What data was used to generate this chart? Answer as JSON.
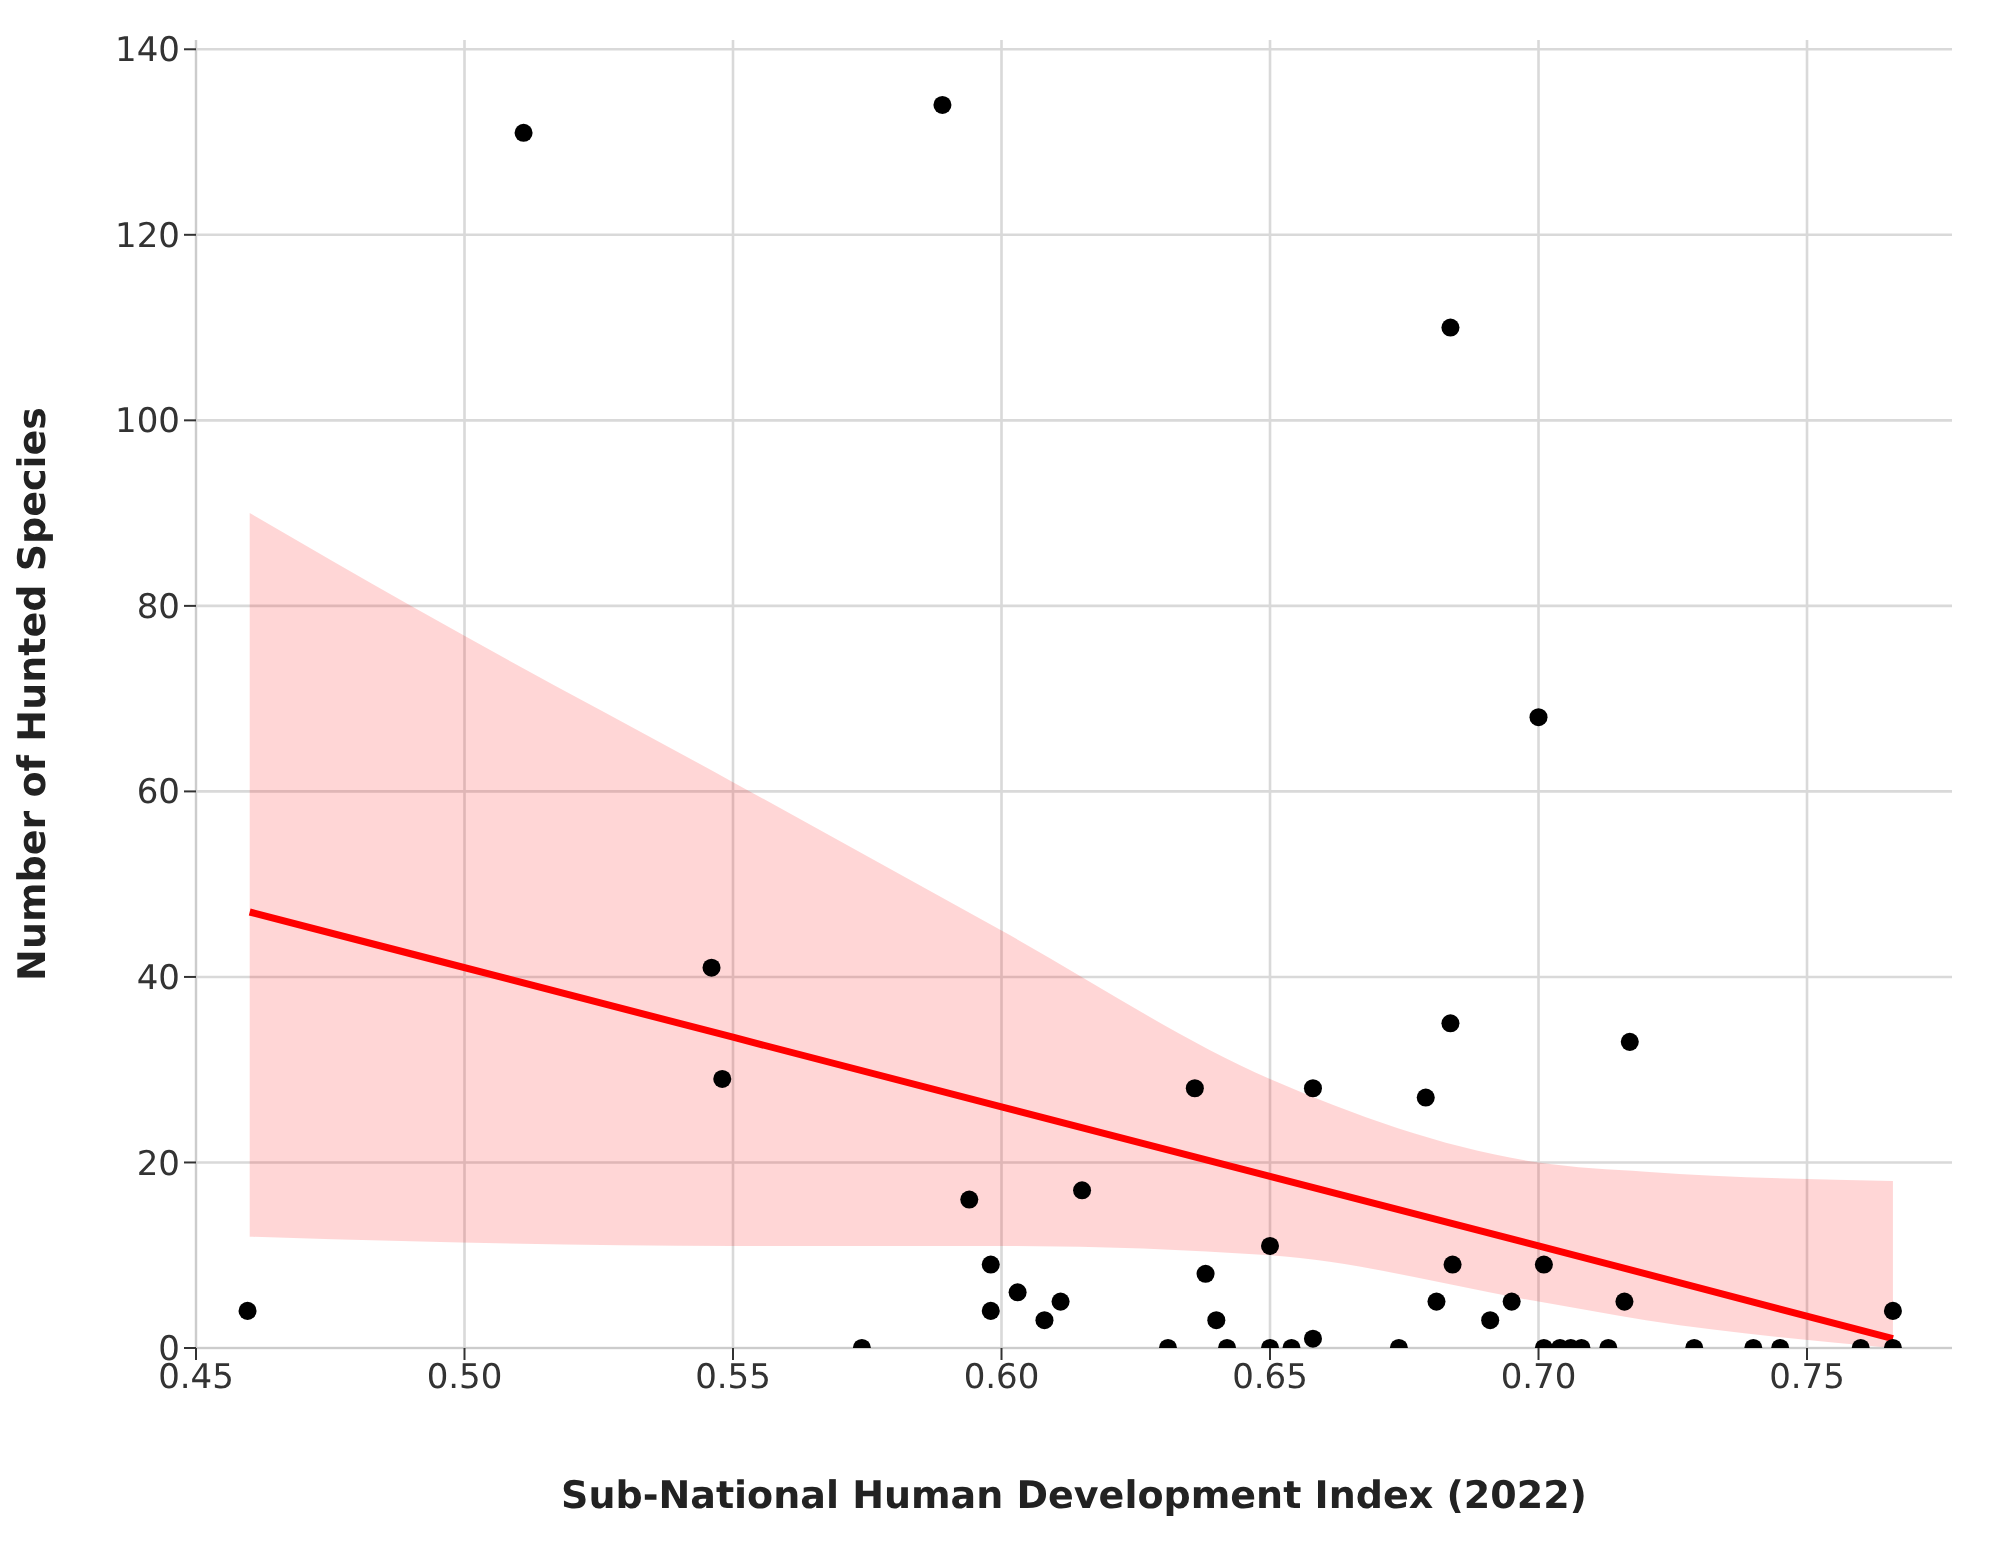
{
  "chart_data": {
    "type": "scatter",
    "xlabel": "Sub-National Human Development Index (2022)",
    "ylabel": "Number of Hunted Species",
    "xlim": [
      0.45,
      0.777
    ],
    "xticks": [
      {
        "value": 0.45,
        "label": "0.45"
      },
      {
        "value": 0.5,
        "label": "0.50"
      },
      {
        "value": 0.55,
        "label": "0.55"
      },
      {
        "value": 0.6,
        "label": "0.60"
      },
      {
        "value": 0.65,
        "label": "0.65"
      },
      {
        "value": 0.7,
        "label": "0.70"
      },
      {
        "value": 0.75,
        "label": "0.75"
      }
    ],
    "ylim": [
      0,
      141
    ],
    "yticks": [
      0,
      20,
      40,
      60,
      80,
      100,
      120,
      140
    ],
    "grid": true,
    "legend": false,
    "series": [
      {
        "type": "scatter",
        "color": "#000000",
        "marker": "circle",
        "x": [
          0.4596,
          0.511,
          0.589,
          0.6836,
          0.7,
          0.546,
          0.548,
          0.594,
          0.598,
          0.598,
          0.603,
          0.608,
          0.611,
          0.615,
          0.574,
          0.631,
          0.636,
          0.638,
          0.64,
          0.642,
          0.65,
          0.65,
          0.654,
          0.658,
          0.658,
          0.674,
          0.679,
          0.6836,
          0.681,
          0.684,
          0.691,
          0.695,
          0.701,
          0.701,
          0.704,
          0.706,
          0.708,
          0.713,
          0.716,
          0.717,
          0.729,
          0.74,
          0.745,
          0.76,
          0.766,
          0.766
        ],
        "values": [
          4,
          131,
          134,
          110,
          68,
          41,
          29,
          16,
          9,
          4,
          6,
          3,
          5,
          17,
          0,
          0,
          28,
          8,
          3,
          0,
          11,
          0,
          0,
          28,
          1,
          0,
          27,
          35,
          5,
          9,
          3,
          5,
          9,
          0,
          0,
          0,
          0,
          0,
          5,
          33,
          0,
          0,
          0,
          0,
          0,
          4
        ]
      },
      {
        "type": "line",
        "color": "#ff0000",
        "line_style": "solid",
        "marker": "none",
        "x": [
          0.46,
          0.49,
          0.55,
          0.6,
          0.65,
          0.7,
          0.72,
          0.766
        ],
        "values": [
          47,
          42.5,
          33.5,
          26,
          18.5,
          11,
          8,
          1
        ],
        "lower": [
          12,
          11.5,
          11,
          11,
          10,
          5,
          3,
          0
        ],
        "upper": [
          90,
          80,
          61,
          45,
          29,
          20,
          19,
          18
        ]
      }
    ]
  }
}
